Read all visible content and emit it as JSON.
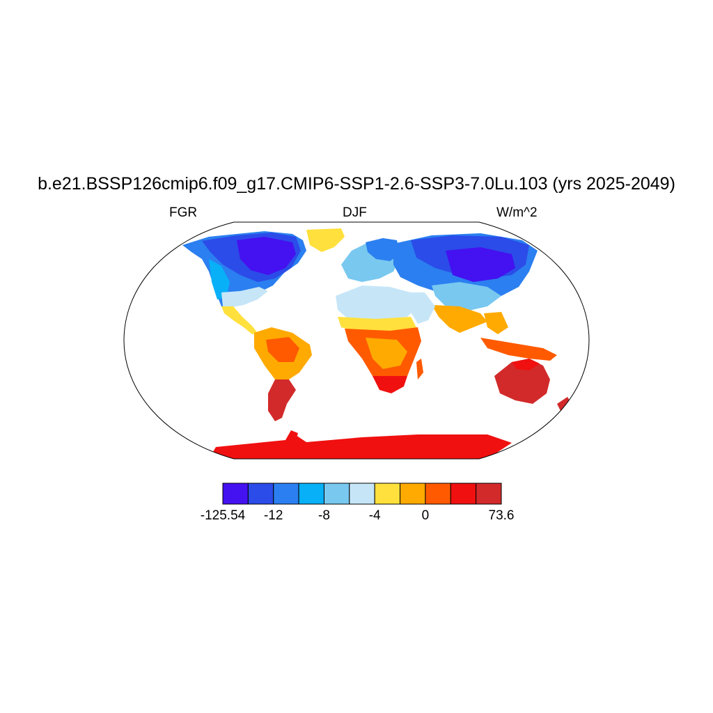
{
  "title": "b.e21.BSSP126cmip6.f09_g17.CMIP6-SSP1-2.6-SSP3-7.0Lu.103 (yrs 2025-2049)",
  "left_string": "FGR",
  "center_string": "DJF",
  "right_string": "W/m^2",
  "projection": "Robinson",
  "colorbar": {
    "colors": [
      "#4411f0",
      "#2b4ce8",
      "#2b7ff0",
      "#08b0f8",
      "#78c8f0",
      "#c6e6f8",
      "#ffe03c",
      "#ffaa00",
      "#ff5a00",
      "#f01010",
      "#d22a2a"
    ],
    "labels": [
      "-125.54",
      "-12",
      "-8",
      "-4",
      "0",
      "73.6"
    ],
    "label_box_index": [
      0,
      2,
      4,
      6,
      8,
      11
    ]
  }
}
